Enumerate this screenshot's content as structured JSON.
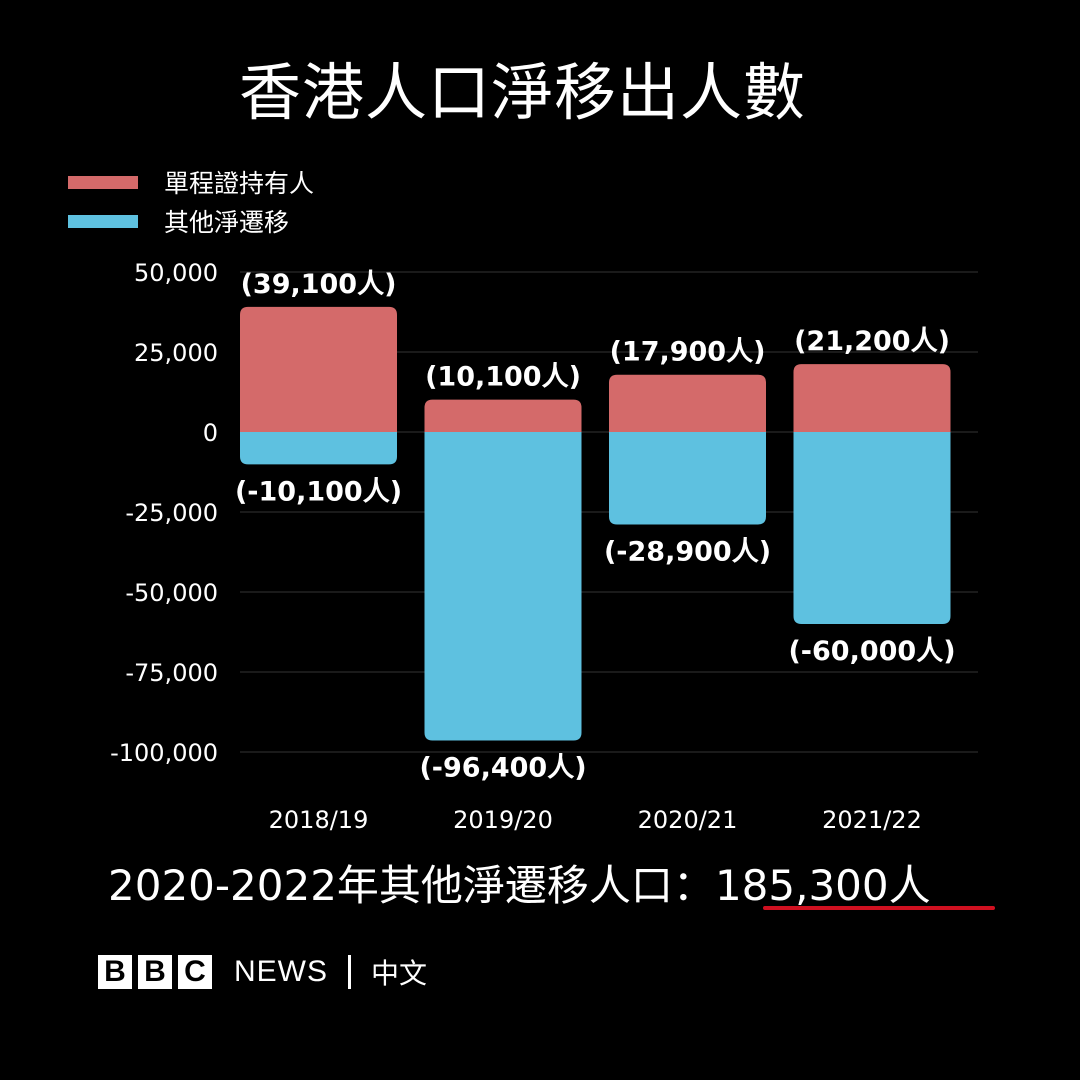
{
  "title": "香港人口淨移出人數",
  "legend": [
    {
      "label": "單程證持有人",
      "color": "#d46a6a"
    },
    {
      "label": "其他淨遷移",
      "color": "#5ec1e0"
    }
  ],
  "chart_data": {
    "type": "bar",
    "stacked": true,
    "categories": [
      "2018/19",
      "2019/20",
      "2020/21",
      "2021/22"
    ],
    "series": [
      {
        "name": "單程證持有人",
        "color": "#d46a6a",
        "values": [
          39100,
          10100,
          17900,
          21200
        ],
        "labels": [
          "(39,100人)",
          "(10,100人)",
          "(17,900人)",
          "(21,200人)"
        ]
      },
      {
        "name": "其他淨遷移",
        "color": "#5ec1e0",
        "values": [
          -10100,
          -96400,
          -28900,
          -60000
        ],
        "labels": [
          "(-10,100人)",
          "(-96,400人)",
          "(-28,900人)",
          "(-60,000人)"
        ]
      }
    ],
    "ylim": [
      -100000,
      50000
    ],
    "yticks": [
      50000,
      25000,
      0,
      -25000,
      -50000,
      -75000,
      -100000
    ],
    "ytick_labels": [
      "50,000",
      "25,000",
      "0",
      "-25,000",
      "-50,000",
      "-75,000",
      "-100,000"
    ],
    "grid": true,
    "legend_position": "top-left"
  },
  "summary": {
    "prefix": "2020-2022年其他淨遷移人口：",
    "value": "185,300人"
  },
  "footer": {
    "bbc_letters": [
      "B",
      "B",
      "C"
    ],
    "news": "NEWS",
    "language": "中文"
  }
}
